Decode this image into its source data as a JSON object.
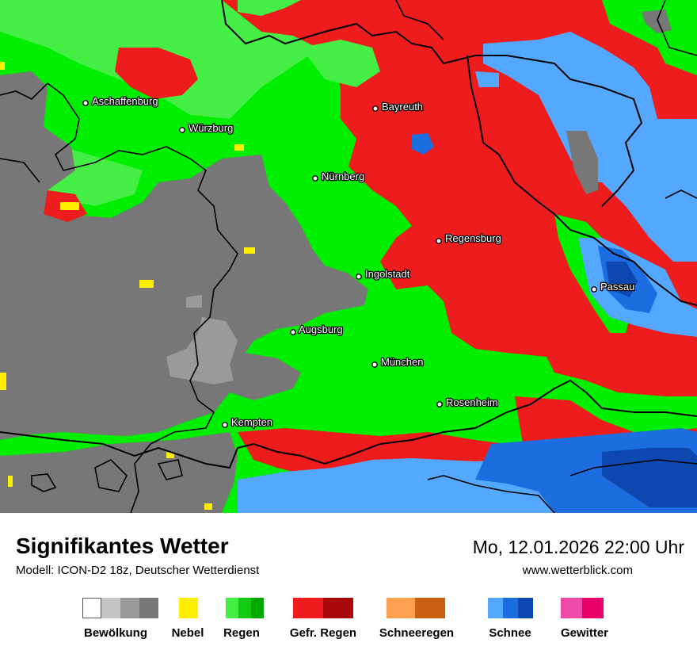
{
  "map": {
    "cities": [
      {
        "name": "Aschaffenburg"
      },
      {
        "name": "Würzburg"
      },
      {
        "name": "Bayreuth"
      },
      {
        "name": "Nürnberg"
      },
      {
        "name": "Regensburg"
      },
      {
        "name": "Ingolstadt"
      },
      {
        "name": "Passau"
      },
      {
        "name": "Augsburg"
      },
      {
        "name": "München"
      },
      {
        "name": "Rosenheim"
      },
      {
        "name": "Kempten"
      }
    ]
  },
  "footer": {
    "title": "Signifikantes Wetter",
    "model": "Modell: ICON-D2 18z, Deutscher Wetterdienst",
    "datetime": "Mo, 12.01.2026 22:00 Uhr",
    "website": "www.wetterblick.com"
  },
  "legend": [
    {
      "label": "Bewölkung",
      "colors": [
        "#ffffff",
        "#c4c4c4",
        "#9a9a9a",
        "#777777"
      ]
    },
    {
      "label": "Nebel",
      "colors": [
        "#ffee00"
      ]
    },
    {
      "label": "Regen",
      "colors": [
        "#44ee44",
        "#11cc11",
        "#00a800"
      ]
    },
    {
      "label": "Gefr. Regen",
      "colors": [
        "#ee1c1c",
        "#ee1c1c",
        "#aa0808"
      ]
    },
    {
      "label": "Schneeregen",
      "colors": [
        "#ffa050",
        "#ffa050",
        "#c86010"
      ]
    },
    {
      "label": "Schnee",
      "colors": [
        "#55a8ff",
        "#1c6ee0",
        "#0c48b0"
      ]
    },
    {
      "label": "Gewitter",
      "colors": [
        "#ee4aa8",
        "#e80068"
      ]
    }
  ],
  "colors": {
    "cloud": "#777777",
    "cloud_light": "#9a9a9a",
    "rain": "#00ee00",
    "rain_light": "#44ee44",
    "freezing_rain": "#ee1c1c",
    "snow": "#55a8ff",
    "snow_dark": "#1c6ee0",
    "snow_darker": "#0c48b0",
    "fog": "#ffee00"
  }
}
